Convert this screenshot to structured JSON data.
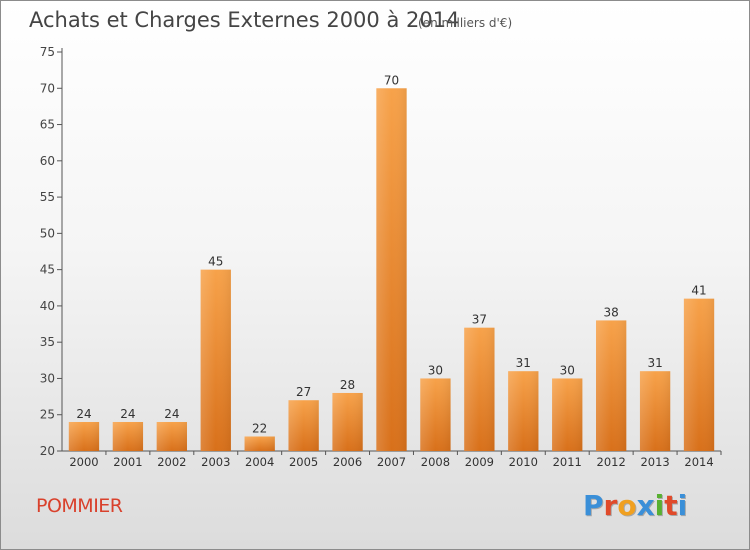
{
  "chart_data": {
    "type": "bar",
    "title": "Achats et Charges Externes 2000 à 2014",
    "subtitle": "(en milliers d'€)",
    "categories": [
      "2000",
      "2001",
      "2002",
      "2003",
      "2004",
      "2005",
      "2006",
      "2007",
      "2008",
      "2009",
      "2010",
      "2011",
      "2012",
      "2013",
      "2014"
    ],
    "values": [
      24,
      24,
      24,
      45,
      22,
      27,
      28,
      70,
      30,
      37,
      31,
      30,
      38,
      31,
      41
    ],
    "ylim": [
      20,
      75
    ],
    "yticks": [
      20,
      25,
      30,
      35,
      40,
      45,
      50,
      55,
      60,
      65,
      70,
      75
    ],
    "grid": false,
    "bar_color": "#f0922e",
    "bar_color_dark": "#d8701a"
  },
  "footer": {
    "commune": "POMMIER",
    "logo_text": "Proxiti",
    "logo_colors": [
      "#3a8fd8",
      "#e04a2a",
      "#f0a020",
      "#3a8fd8",
      "#58b030",
      "#e04a2a",
      "#3a8fd8"
    ]
  }
}
